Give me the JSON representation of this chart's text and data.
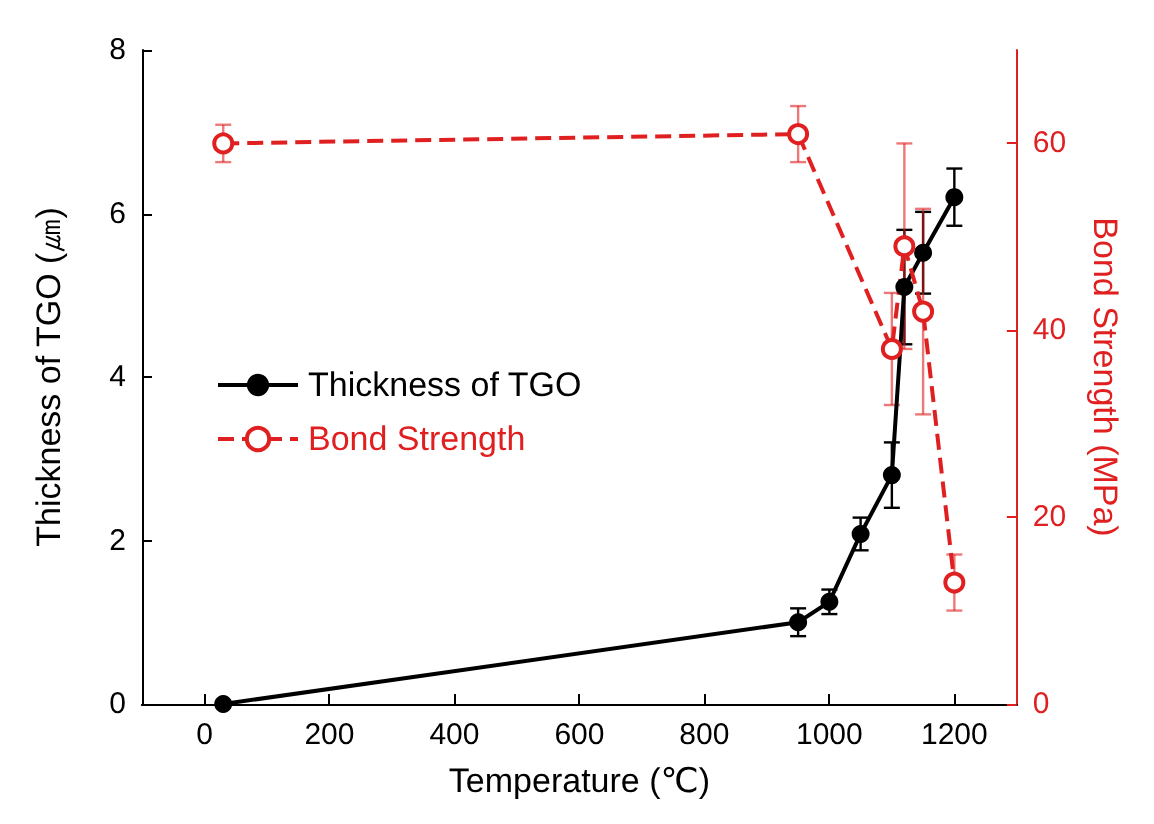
{
  "chart_data": {
    "type": "line",
    "xlabel": "Temperature (℃)",
    "ylabel": "Thickness of TGO (㎛)",
    "y2label": "Bond Strength (MPa)",
    "xlim": [
      -100,
      1300
    ],
    "xticks": [
      0,
      200,
      400,
      600,
      800,
      1000,
      1200
    ],
    "ylim": [
      0,
      8
    ],
    "yticks": [
      0,
      2,
      4,
      6,
      8
    ],
    "y2lim": [
      0,
      70
    ],
    "y2ticks": [
      0,
      20,
      40,
      60
    ],
    "legend": "left",
    "grid": false,
    "marker": "circle",
    "series": [
      {
        "name": "Thickness of TGO",
        "color": "#000000",
        "line_style": "solid",
        "x": [
          30,
          950,
          1000,
          1050,
          1100,
          1120,
          1150,
          1200
        ],
        "values": [
          0,
          1.0,
          1.25,
          2.08,
          2.8,
          5.1,
          5.52,
          6.2
        ],
        "errors": [
          null,
          0.17,
          0.15,
          0.2,
          0.4,
          0.7,
          0.5,
          0.35
        ]
      },
      {
        "name": "Bond Strength",
        "color": "#e02020",
        "line_style": "dashed",
        "axis": "y2",
        "x": [
          30,
          950,
          1100,
          1120,
          1150,
          1200
        ],
        "values": [
          60,
          61,
          38,
          49,
          42,
          13
        ],
        "errors": [
          2,
          3,
          6,
          11,
          11,
          3
        ]
      }
    ]
  }
}
